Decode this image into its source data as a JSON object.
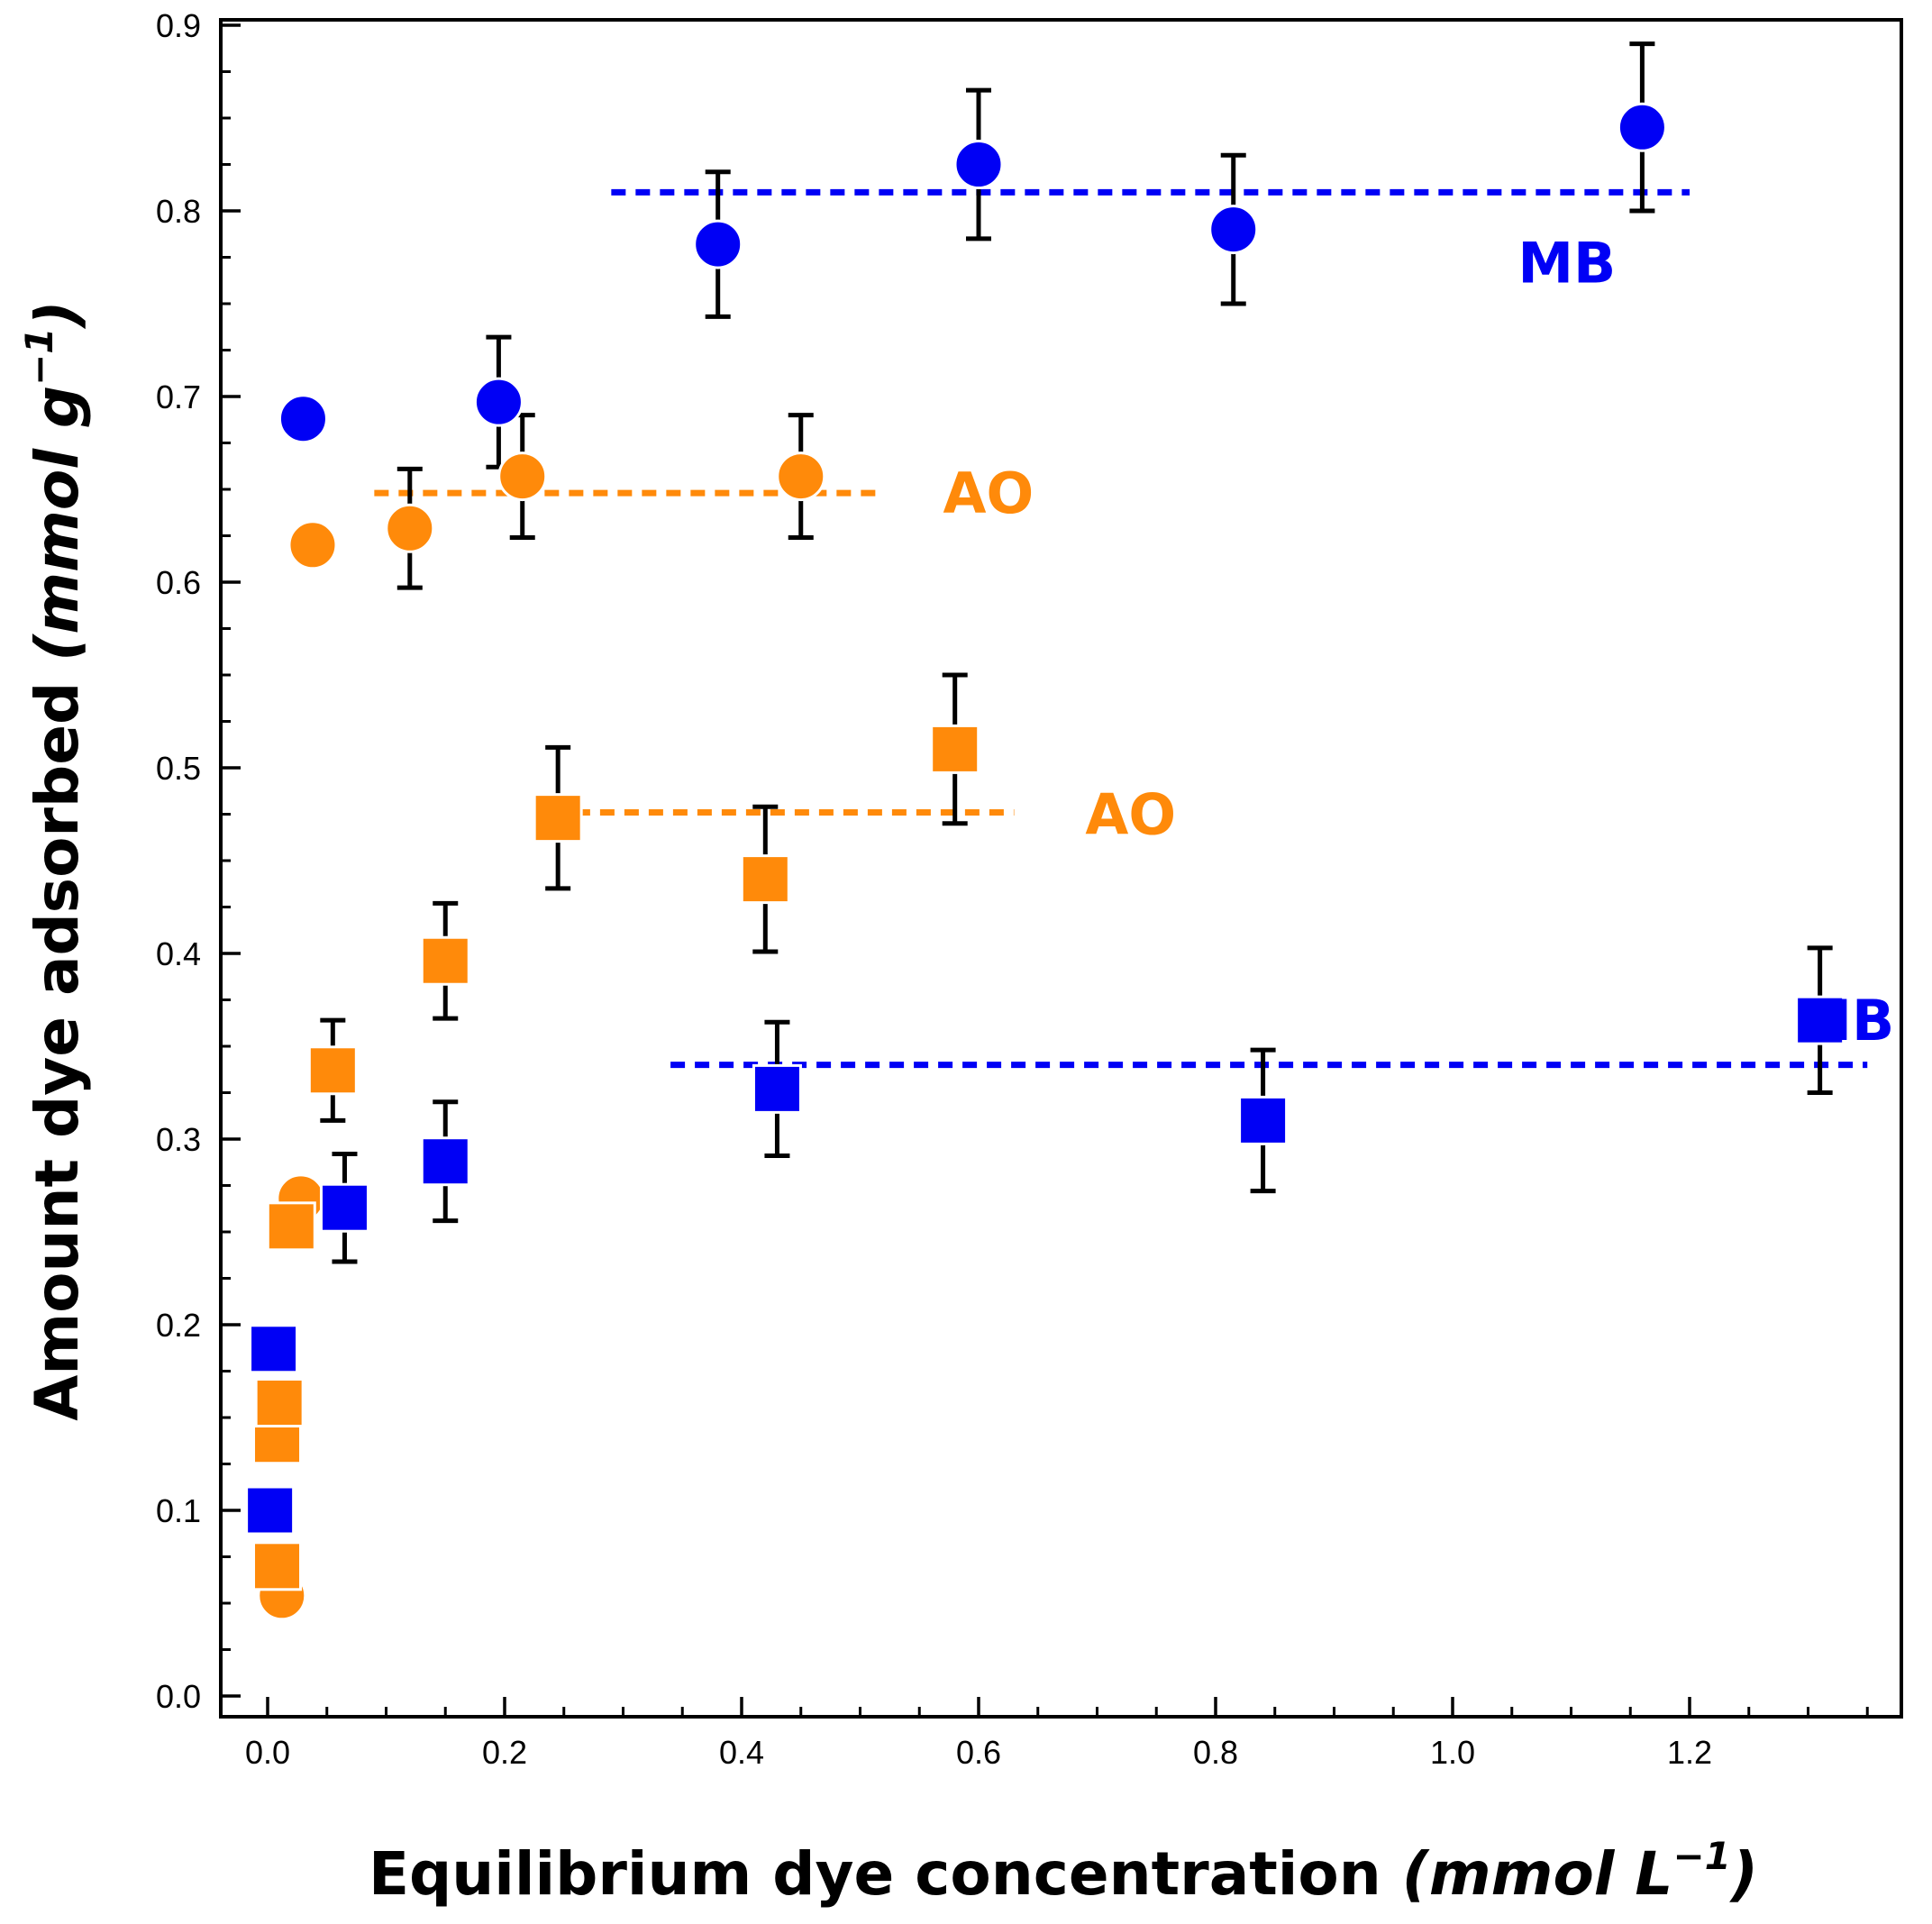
{
  "colors": {
    "MB": "#0000f5",
    "AO": "#ff8a0a",
    "axis": "#000000",
    "errorbar": "#000000"
  },
  "chart_data": {
    "type": "scatter",
    "xlabel": {
      "text": "Equilibrium dye concentration ",
      "unit_open": "(mmol L",
      "unit_sup": "−1",
      "unit_close": ")"
    },
    "ylabel": {
      "text": "Amount dye adsorbed ",
      "unit_open": "(mmol g",
      "unit_sup": "−1",
      "unit_close": ")"
    },
    "xlim": [
      -0.1,
      1.37
    ],
    "ylim": [
      -0.02,
      0.92
    ],
    "x_ticks": [
      {
        "value": 0.0,
        "label": "0.0"
      },
      {
        "value": 0.2,
        "label": "0.2"
      },
      {
        "value": 0.4,
        "label": "0.4"
      },
      {
        "value": 0.6,
        "label": "0.6"
      },
      {
        "value": 0.8,
        "label": "0.8"
      },
      {
        "value": 1.0,
        "label": "1.0"
      },
      {
        "value": 1.2,
        "label": "1.2"
      }
    ],
    "y_ticks": [
      {
        "value": 0.0,
        "label": "0.0"
      },
      {
        "value": 0.1,
        "label": "0.1"
      },
      {
        "value": 0.2,
        "label": "0.2"
      },
      {
        "value": 0.3,
        "label": "0.3"
      },
      {
        "value": 0.4,
        "label": "0.4"
      },
      {
        "value": 0.5,
        "label": "0.5"
      },
      {
        "value": 0.6,
        "label": "0.6"
      },
      {
        "value": 0.7,
        "label": "0.7"
      },
      {
        "value": 0.8,
        "label": "0.8"
      },
      {
        "value": 0.9,
        "label": "0.9"
      }
    ],
    "x_minor_step": 0.05,
    "y_minor_step": 0.025,
    "grid": false,
    "series": [
      {
        "dye": "MB",
        "marker": "circle",
        "points": [
          {
            "x": 0.01,
            "y": 0.14
          },
          {
            "x": 0.03,
            "y": 0.688
          },
          {
            "x": 0.195,
            "y": 0.697,
            "err": 0.035
          },
          {
            "x": 0.38,
            "y": 0.782,
            "err": 0.039
          },
          {
            "x": 0.6,
            "y": 0.825,
            "err": 0.04
          },
          {
            "x": 0.815,
            "y": 0.79,
            "err": 0.04
          },
          {
            "x": 1.16,
            "y": 0.845,
            "err": 0.045
          }
        ]
      },
      {
        "dye": "AO",
        "marker": "circle",
        "points": [
          {
            "x": 0.012,
            "y": 0.054
          },
          {
            "x": 0.028,
            "y": 0.268
          },
          {
            "x": 0.038,
            "y": 0.62
          },
          {
            "x": 0.12,
            "y": 0.629,
            "err": 0.032
          },
          {
            "x": 0.215,
            "y": 0.657,
            "err": 0.033
          },
          {
            "x": 0.45,
            "y": 0.657,
            "err": 0.033
          }
        ]
      },
      {
        "dye": "AO",
        "marker": "square",
        "points": [
          {
            "x": 0.008,
            "y": 0.07
          },
          {
            "x": 0.008,
            "y": 0.138
          },
          {
            "x": 0.01,
            "y": 0.158
          },
          {
            "x": 0.02,
            "y": 0.253
          },
          {
            "x": 0.055,
            "y": 0.337,
            "err": 0.027
          },
          {
            "x": 0.15,
            "y": 0.396,
            "err": 0.031
          },
          {
            "x": 0.245,
            "y": 0.473,
            "err": 0.038
          },
          {
            "x": 0.42,
            "y": 0.44,
            "err": 0.039
          },
          {
            "x": 0.58,
            "y": 0.51,
            "err": 0.04
          }
        ]
      },
      {
        "dye": "MB",
        "marker": "square",
        "points": [
          {
            "x": 0.002,
            "y": 0.1
          },
          {
            "x": 0.005,
            "y": 0.187
          },
          {
            "x": 0.065,
            "y": 0.263,
            "err": 0.029
          },
          {
            "x": 0.15,
            "y": 0.288,
            "err": 0.032
          },
          {
            "x": 0.43,
            "y": 0.327,
            "err": 0.036
          },
          {
            "x": 0.84,
            "y": 0.31,
            "err": 0.038
          },
          {
            "x": 1.31,
            "y": 0.364,
            "err": 0.039
          }
        ]
      }
    ],
    "plateau_lines": [
      {
        "dye": "MB",
        "y": 0.81,
        "x_start": 0.29,
        "x_end": 1.2
      },
      {
        "dye": "AO",
        "y": 0.648,
        "x_start": 0.09,
        "x_end": 0.52
      },
      {
        "dye": "AO",
        "y": 0.476,
        "x_start": 0.26,
        "x_end": 0.63
      },
      {
        "dye": "MB",
        "y": 0.34,
        "x_start": 0.34,
        "x_end": 1.35
      }
    ],
    "annotations": [
      {
        "text": "MB",
        "dye": "MB",
        "x": 1.055,
        "y": 0.772
      },
      {
        "text": "AO",
        "dye": "AO",
        "x": 0.57,
        "y": 0.648
      },
      {
        "text": "AO",
        "dye": "AO",
        "x": 0.69,
        "y": 0.475
      },
      {
        "text": "MB",
        "dye": "MB",
        "x": 1.29,
        "y": 0.364
      }
    ]
  }
}
